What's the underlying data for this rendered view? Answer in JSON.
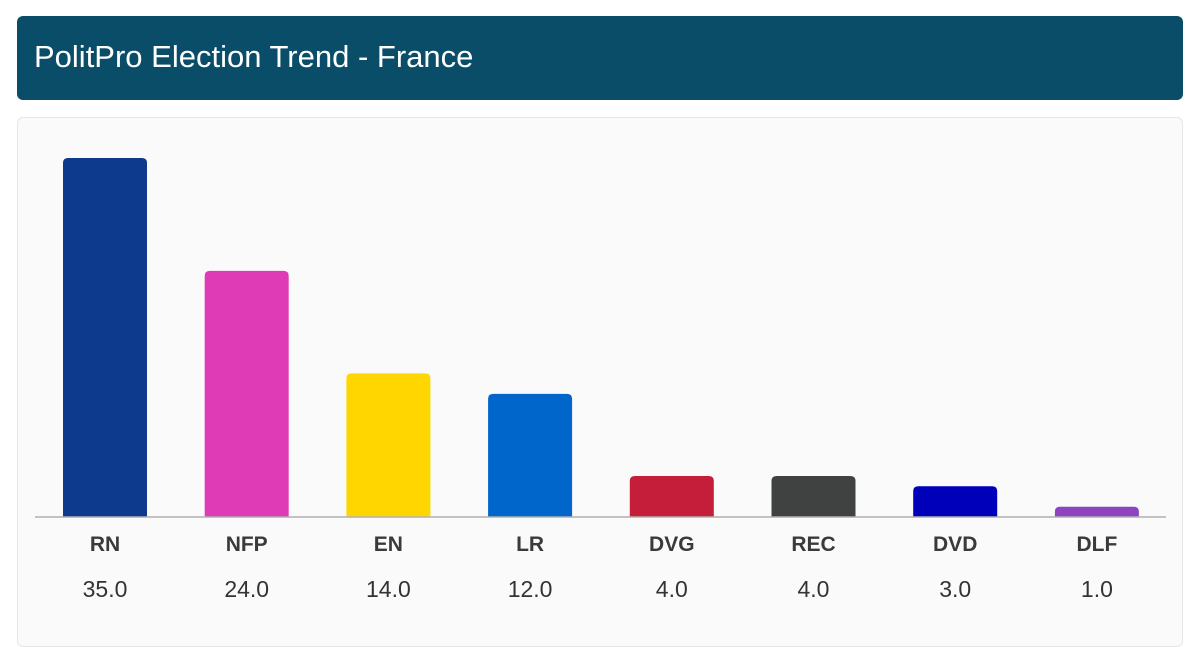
{
  "header": {
    "title": "PolitPro Election Trend - France"
  },
  "chart_data": {
    "type": "bar",
    "categories": [
      "RN",
      "NFP",
      "EN",
      "LR",
      "DVG",
      "REC",
      "DVD",
      "DLF"
    ],
    "values": [
      35.0,
      24.0,
      14.0,
      12.0,
      4.0,
      4.0,
      3.0,
      1.0
    ],
    "value_labels": [
      "35.0",
      "24.0",
      "14.0",
      "12.0",
      "4.0",
      "4.0",
      "3.0",
      "1.0"
    ],
    "colors": [
      "#0d3a8c",
      "#e03bb7",
      "#ffd600",
      "#0066cc",
      "#c41e3a",
      "#404242",
      "#0000bb",
      "#8e44c0"
    ],
    "ylim": [
      0,
      35
    ],
    "grid": false
  }
}
